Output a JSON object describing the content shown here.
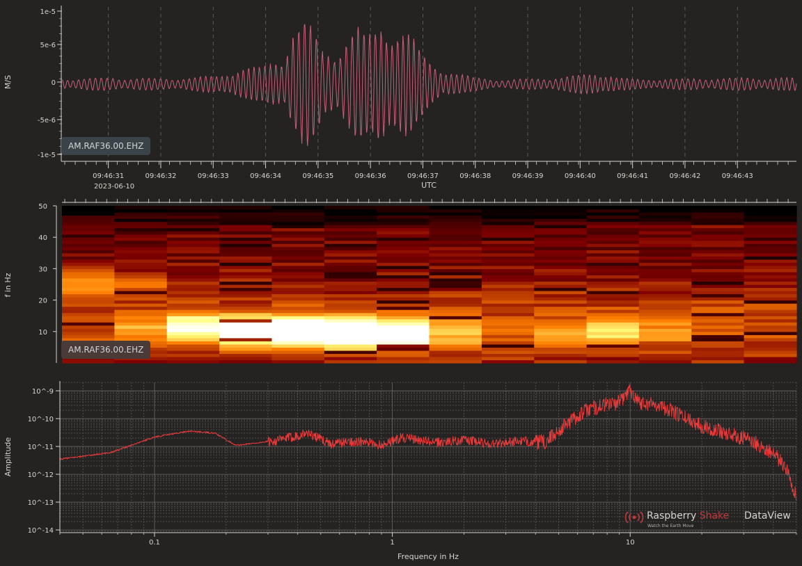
{
  "colors": {
    "background": "#252322",
    "waveform": "#c8607a",
    "spectrum": "#e83a3a",
    "grid": "#6b6866",
    "axis": "#d8d4cf",
    "badge_bg": "#3a4348",
    "brand_red": "#c0393e"
  },
  "brand": {
    "name_part1": "Raspberry",
    "name_part2": "Shake",
    "product": "DataView",
    "tagline": "Watch the Earth Move",
    "logo_icon": "concentric-waves-icon"
  },
  "chart_data": [
    {
      "type": "line",
      "title": "",
      "station": "AM.RAF36.00.EHZ",
      "ylabel": "M/S",
      "xlabel": "UTC",
      "date_label": "2023-06-10",
      "x_tick_labels": [
        "09:46:31",
        "09:46:32",
        "09:46:33",
        "09:46:34",
        "09:46:35",
        "09:46:36",
        "09:46:37",
        "09:46:38",
        "09:46:39",
        "09:46:40",
        "09:46:41",
        "09:46:42",
        "09:46:43"
      ],
      "y_tick_labels": [
        "1e-5",
        "5e-6",
        "0",
        "-5e-6",
        "-1e-5"
      ],
      "y_ticks": [
        1e-05,
        5e-06,
        0,
        -5e-06,
        -1e-05
      ],
      "ylim": [
        -1.1e-05,
        1.1e-05
      ],
      "xlim_seconds": [
        30.0,
        44.0
      ],
      "grid": true,
      "envelope": {
        "x": [
          30.0,
          31.0,
          32.0,
          33.0,
          33.3,
          33.8,
          34.2,
          34.4,
          34.7,
          35.0,
          35.3,
          35.6,
          35.9,
          36.1,
          36.3,
          36.6,
          36.9,
          37.3,
          37.8,
          38.5,
          39.5,
          40.3,
          40.6,
          41.0,
          42.0,
          43.0,
          44.0
        ],
        "amplitude": [
          8e-07,
          9e-07,
          8e-07,
          1.2e-06,
          2.2e-06,
          2.4e-06,
          4e-06,
          8e-06,
          9e-06,
          4.5e-06,
          6e-06,
          8e-06,
          7e-06,
          9.8e-06,
          9e-06,
          7.5e-06,
          4e-06,
          2e-06,
          1e-06,
          6e-07,
          1e-06,
          1.7e-06,
          9e-07,
          7e-07,
          8e-07,
          9e-07,
          9e-07
        ],
        "dominant_frequency_hz": 10
      }
    },
    {
      "type": "heatmap",
      "title": "",
      "station": "AM.RAF36.00.EHZ",
      "ylabel": "f in Hz",
      "y_tick_labels": [
        "50",
        "40",
        "30",
        "20",
        "10"
      ],
      "y_ticks": [
        50,
        40,
        30,
        20,
        10
      ],
      "ylim": [
        0,
        50
      ],
      "xlim_seconds": [
        30.0,
        44.0
      ],
      "colormap": "afmhot",
      "time_bin_width_s": 1.0,
      "frequency_bin_width_hz": 1.0,
      "energy_peaks": [
        {
          "t": 35.5,
          "f": 10,
          "intensity": 1.0
        },
        {
          "t": 34.5,
          "f": 10,
          "intensity": 0.95
        },
        {
          "t": 36.5,
          "f": 9,
          "intensity": 0.85
        },
        {
          "t": 33.5,
          "f": 10,
          "intensity": 0.75
        },
        {
          "t": 32.5,
          "f": 12,
          "intensity": 0.6
        },
        {
          "t": 40.5,
          "f": 10,
          "intensity": 0.5
        },
        {
          "t": 30.5,
          "f": 26,
          "intensity": 0.45
        }
      ]
    },
    {
      "type": "line",
      "title": "",
      "xlabel": "Frequency in Hz",
      "ylabel": "Amplitude",
      "xscale": "log",
      "yscale": "log",
      "xlim": [
        0.04,
        50
      ],
      "ylim": [
        8e-15,
        2e-09
      ],
      "x_tick_labels": [
        "0.1",
        "1",
        "10"
      ],
      "x_ticks": [
        0.1,
        1,
        10
      ],
      "y_tick_labels": [
        "10^-9",
        "10^-10",
        "10^-11",
        "10^-12",
        "10^-13",
        "10^-14"
      ],
      "y_ticks": [
        1e-09,
        1e-10,
        1e-11,
        1e-12,
        1e-13,
        1e-14
      ],
      "grid": true,
      "x": [
        0.04,
        0.065,
        0.1,
        0.14,
        0.18,
        0.22,
        0.28,
        0.34,
        0.44,
        0.55,
        0.7,
        0.9,
        1.1,
        1.5,
        2.0,
        2.6,
        3.4,
        4.4,
        5.5,
        6.6,
        8.0,
        9.0,
        10.0,
        11.0,
        13.0,
        16.0,
        20.0,
        26.0,
        32.0,
        40.0,
        46.0,
        50.0
      ],
      "y": [
        3.5e-12,
        6e-12,
        2.2e-11,
        3.6e-11,
        3e-11,
        1.1e-11,
        1.4e-11,
        1.8e-11,
        3.2e-11,
        1.3e-11,
        1.6e-11,
        1.2e-11,
        2.2e-11,
        1.4e-11,
        1.8e-11,
        1.3e-11,
        1.6e-11,
        1.5e-11,
        8e-11,
        2.2e-10,
        3.5e-10,
        4e-10,
        1.2e-09,
        4e-10,
        3.5e-10,
        1.5e-10,
        6e-11,
        3e-11,
        1.8e-11,
        6e-12,
        1.5e-12,
        1.5e-13
      ]
    }
  ]
}
